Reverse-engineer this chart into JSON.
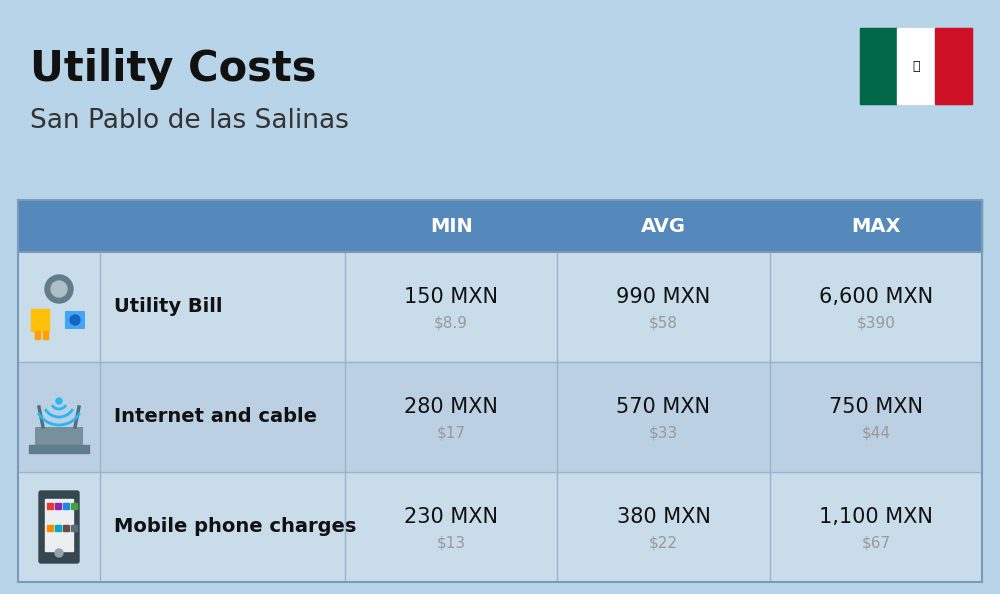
{
  "title": "Utility Costs",
  "subtitle": "San Pablo de las Salinas",
  "background_color": "#b8d4e8",
  "header_bg_color": "#5588bb",
  "header_text_color": "#ffffff",
  "row_bg_color_1": "#c8dcea",
  "row_bg_color_2": "#bbd0e2",
  "col_header_labels": [
    "MIN",
    "AVG",
    "MAX"
  ],
  "rows": [
    {
      "label": "Utility Bill",
      "min_mxn": "150 MXN",
      "min_usd": "$8.9",
      "avg_mxn": "990 MXN",
      "avg_usd": "$58",
      "max_mxn": "6,600 MXN",
      "max_usd": "$390"
    },
    {
      "label": "Internet and cable",
      "min_mxn": "280 MXN",
      "min_usd": "$17",
      "avg_mxn": "570 MXN",
      "avg_usd": "$33",
      "max_mxn": "750 MXN",
      "max_usd": "$44"
    },
    {
      "label": "Mobile phone charges",
      "min_mxn": "230 MXN",
      "min_usd": "$13",
      "avg_mxn": "380 MXN",
      "avg_usd": "$22",
      "max_mxn": "1,100 MXN",
      "max_usd": "$67"
    }
  ],
  "title_fontsize": 30,
  "subtitle_fontsize": 19,
  "header_fontsize": 14,
  "label_fontsize": 14,
  "value_fontsize": 15,
  "usd_fontsize": 11,
  "usd_color": "#999999",
  "flag_green": "#006847",
  "flag_white": "#ffffff",
  "flag_red": "#ce1126"
}
